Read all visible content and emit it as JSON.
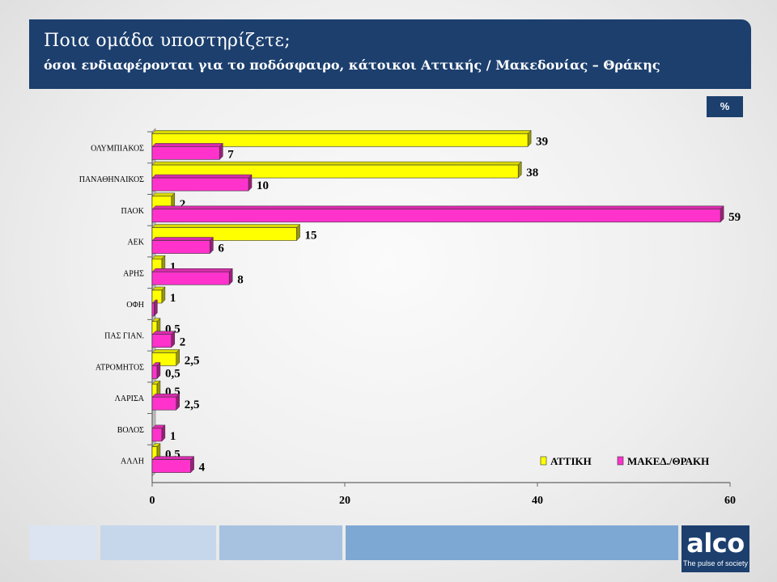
{
  "header": {
    "title": "Ποια ομάδα υποστηρίζετε;",
    "subtitle": "όσοι ενδιαφέρονται για το ποδόσφαιρο,  κάτοικοι Αττικής / Μακεδονίας – Θράκης"
  },
  "unit_badge": "%",
  "logo": {
    "word": "alco",
    "tagline": "The pulse of society"
  },
  "colors": {
    "header_bg": "#1c3f6e",
    "attiki": "#ffff00",
    "makedonia": "#ff33cc",
    "footer_blocks": [
      "#dbe4f0",
      "#c6d7ec",
      "#a7c2e0",
      "#7ea8d4"
    ]
  },
  "chart_data": {
    "type": "bar",
    "orientation": "horizontal",
    "categories": [
      "ΟΛΥΜΠΙΑΚΟΣ",
      "ΠΑΝΑΘΗΝΑΙΚΟΣ",
      "ΠΑΟΚ",
      "ΑΕΚ",
      "ΑΡΗΣ",
      "ΟΦΗ",
      "ΠΑΣ ΓΙΑΝ.",
      "ΑΤΡΟΜΗΤΟΣ",
      "ΛΑΡΙΣΑ",
      "ΒΟΛΟΣ",
      "ΑΛΛΗ"
    ],
    "series": [
      {
        "name": "ΑΤΤΙΚΗ",
        "color": "#ffff00",
        "values": [
          39,
          38,
          2,
          15,
          1,
          1,
          0.5,
          2.5,
          0.5,
          null,
          0.5
        ],
        "labels": [
          "39",
          "38",
          "2",
          "15",
          "1",
          "1",
          "0,5",
          "2,5",
          "0,5",
          "",
          "0,5"
        ]
      },
      {
        "name": "ΜΑΚΕΔ./ΘΡΑΚΗ",
        "color": "#ff33cc",
        "values": [
          7,
          10,
          59,
          6,
          8,
          0.2,
          2,
          0.5,
          2.5,
          1,
          4
        ],
        "labels": [
          "7",
          "10",
          "59",
          "6",
          "8",
          "",
          "2",
          "0,5",
          "2,5",
          "1",
          "4"
        ]
      }
    ],
    "xlim": [
      0,
      60
    ],
    "xticks": [
      "0",
      "20",
      "40",
      "60"
    ],
    "xlabel": "",
    "ylabel": "",
    "grid": false,
    "legend_position": "bottom-right"
  }
}
